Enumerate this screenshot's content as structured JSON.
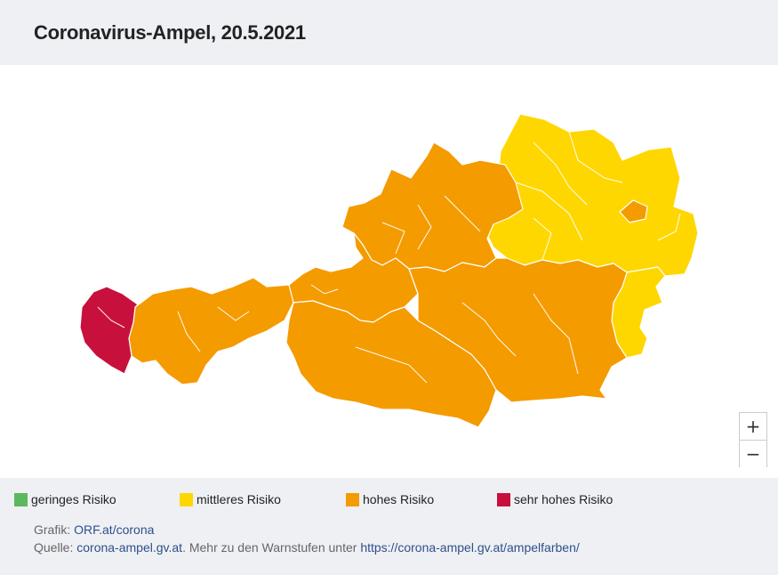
{
  "header": {
    "title": "Coronavirus-Ampel, 20.5.2021"
  },
  "map": {
    "regions": [
      {
        "name": "Vorarlberg",
        "risk": "sehr hohes Risiko",
        "color": "#c8103c"
      },
      {
        "name": "Tirol",
        "risk": "hohes Risiko",
        "color": "#f49b00"
      },
      {
        "name": "Salzburg",
        "risk": "hohes Risiko",
        "color": "#f49b00"
      },
      {
        "name": "Oberösterreich",
        "risk": "hohes Risiko",
        "color": "#f49b00"
      },
      {
        "name": "Kärnten",
        "risk": "hohes Risiko",
        "color": "#f49b00"
      },
      {
        "name": "Steiermark",
        "risk": "hohes Risiko",
        "color": "#f49b00"
      },
      {
        "name": "Niederösterreich",
        "risk": "mittleres Risiko",
        "color": "#ffd700"
      },
      {
        "name": "Wien",
        "risk": "hohes Risiko",
        "color": "#f49b00"
      },
      {
        "name": "Burgenland",
        "risk": "mittleres Risiko",
        "color": "#ffd700"
      }
    ]
  },
  "zoom": {
    "in_label": "+",
    "out_label": "−"
  },
  "legend": {
    "items": [
      {
        "label": "geringes Risiko",
        "color": "#5cb85c"
      },
      {
        "label": "mittleres Risiko",
        "color": "#ffd700"
      },
      {
        "label": "hohes Risiko",
        "color": "#f49b00"
      },
      {
        "label": "sehr hohes Risiko",
        "color": "#c8103c"
      }
    ]
  },
  "credits": {
    "grafik_prefix": "Grafik: ",
    "grafik_link": "ORF.at/corona",
    "quelle_prefix": "Quelle: ",
    "quelle_link": "corona-ampel.gv.at",
    "quelle_middle": ". Mehr zu den Warnstufen unter ",
    "quelle_link2": "https://corona-ampel.gv.at/ampelfarben/"
  }
}
